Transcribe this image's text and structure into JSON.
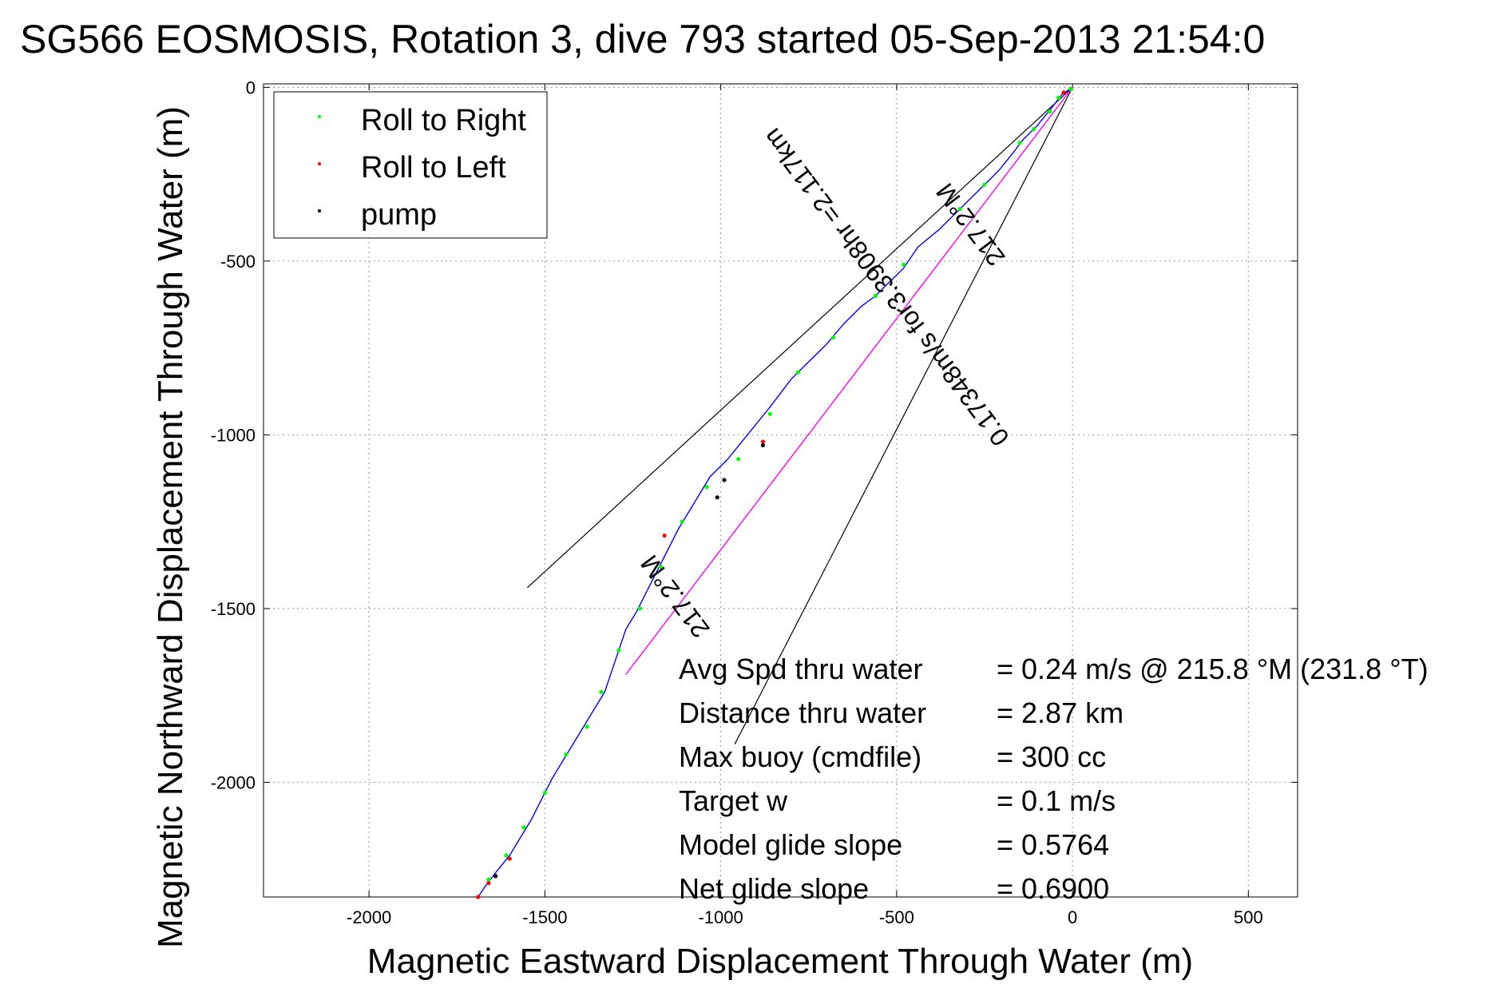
{
  "chart_data": {
    "type": "scatter",
    "title": "SG566 EOSMOSIS, Rotation 3, dive 793 started 05-Sep-2013 21:54:0",
    "xlabel": "Magnetic Eastward Displacement Through Water (m)",
    "ylabel": "Magnetic Northward Displacement Through Water (m)",
    "xlim": [
      -2300,
      640
    ],
    "ylim": [
      -2330,
      10
    ],
    "x_ticks": [
      -2000,
      -1500,
      -1000,
      -500,
      0,
      500
    ],
    "x_tick_labels": [
      "-2000",
      "-1500",
      "-1000",
      "-500",
      "0",
      "500"
    ],
    "y_ticks": [
      0,
      -500,
      -1000,
      -1500,
      -2000
    ],
    "y_tick_labels": [
      "0",
      "-500",
      "-1000",
      "-1500",
      "-2000"
    ],
    "grid": true,
    "legend_position": "top-left",
    "legend": [
      {
        "label": "Roll to Right",
        "color": "#00ff00"
      },
      {
        "label": "Roll to Left",
        "color": "#ff0000"
      },
      {
        "label": "pump",
        "color": "#000000"
      }
    ],
    "track_color": "#0000ff",
    "track": [
      [
        0,
        0
      ],
      [
        -30,
        -20
      ],
      [
        -60,
        -60
      ],
      [
        -100,
        -110
      ],
      [
        -140,
        -150
      ],
      [
        -170,
        -190
      ],
      [
        -210,
        -240
      ],
      [
        -260,
        -290
      ],
      [
        -320,
        -350
      ],
      [
        -380,
        -410
      ],
      [
        -440,
        -460
      ],
      [
        -480,
        -520
      ],
      [
        -520,
        -560
      ],
      [
        -560,
        -600
      ],
      [
        -600,
        -630
      ],
      [
        -650,
        -680
      ],
      [
        -700,
        -740
      ],
      [
        -750,
        -790
      ],
      [
        -800,
        -840
      ],
      [
        -830,
        -880
      ],
      [
        -860,
        -920
      ],
      [
        -900,
        -970
      ],
      [
        -940,
        -1020
      ],
      [
        -980,
        -1070
      ],
      [
        -1030,
        -1120
      ],
      [
        -1060,
        -1170
      ],
      [
        -1090,
        -1220
      ],
      [
        -1120,
        -1270
      ],
      [
        -1150,
        -1330
      ],
      [
        -1180,
        -1390
      ],
      [
        -1210,
        -1450
      ],
      [
        -1240,
        -1510
      ],
      [
        -1270,
        -1560
      ],
      [
        -1290,
        -1620
      ],
      [
        -1310,
        -1680
      ],
      [
        -1330,
        -1740
      ],
      [
        -1360,
        -1790
      ],
      [
        -1390,
        -1840
      ],
      [
        -1420,
        -1890
      ],
      [
        -1450,
        -1940
      ],
      [
        -1480,
        -1990
      ],
      [
        -1510,
        -2050
      ],
      [
        -1540,
        -2110
      ],
      [
        -1570,
        -2160
      ],
      [
        -1600,
        -2210
      ],
      [
        -1640,
        -2260
      ],
      [
        -1670,
        -2300
      ],
      [
        -1690,
        -2330
      ]
    ],
    "roll_right_points": [
      [
        -5,
        -5
      ],
      [
        -40,
        -30
      ],
      [
        -65,
        -70
      ],
      [
        -110,
        -120
      ],
      [
        -150,
        -160
      ],
      [
        -250,
        -280
      ],
      [
        -320,
        -350
      ],
      [
        -480,
        -510
      ],
      [
        -560,
        -600
      ],
      [
        -680,
        -720
      ],
      [
        -780,
        -820
      ],
      [
        -860,
        -940
      ],
      [
        -950,
        -1070
      ],
      [
        -1040,
        -1150
      ],
      [
        -1110,
        -1250
      ],
      [
        -1170,
        -1380
      ],
      [
        -1230,
        -1500
      ],
      [
        -1290,
        -1620
      ],
      [
        -1340,
        -1740
      ],
      [
        -1380,
        -1840
      ],
      [
        -1440,
        -1920
      ],
      [
        -1500,
        -2030
      ],
      [
        -1560,
        -2130
      ],
      [
        -1610,
        -2210
      ],
      [
        -1660,
        -2280
      ]
    ],
    "roll_left_points": [
      [
        -25,
        -15
      ],
      [
        -880,
        -1020
      ],
      [
        -1160,
        -1290
      ],
      [
        -1660,
        -2290
      ],
      [
        -1690,
        -2330
      ],
      [
        -1600,
        -2220
      ]
    ],
    "pump_points": [
      [
        -880,
        -1030
      ],
      [
        -990,
        -1130
      ],
      [
        -1010,
        -1180
      ],
      [
        -1640,
        -2270
      ]
    ],
    "glide_line_color": "#ff00ff",
    "glide_line": [
      [
        0,
        0
      ],
      [
        -1270,
        -1690
      ]
    ],
    "envelope_lines": [
      {
        "from": [
          0,
          0
        ],
        "to": [
          -1550,
          -1440
        ]
      },
      {
        "from": [
          0,
          0
        ],
        "to": [
          -960,
          -1890
        ]
      }
    ],
    "annotations": [
      {
        "text": "0.17348m/s for3.3908hr =2.117km",
        "x": -510,
        "y": -560,
        "angle": -127
      },
      {
        "text": "217.2°M",
        "x": -270,
        "y": -380,
        "angle": -127
      },
      {
        "text": "217.2°M",
        "x": -1110,
        "y": -1450,
        "angle": -127
      }
    ],
    "stats": [
      {
        "label": "Avg Spd thru water",
        "value": "=  0.24 m/s @ 215.8 °M (231.8 °T)"
      },
      {
        "label": "Distance thru water",
        "value": "=  2.87 km"
      },
      {
        "label": "Max buoy (cmdfile)",
        "value": "= 300 cc"
      },
      {
        "label": "Target w",
        "value": "= 0.1 m/s"
      },
      {
        "label": "Model glide slope",
        "value": "= 0.5764"
      },
      {
        "label": "Net glide slope",
        "value": "= 0.6900"
      }
    ]
  }
}
